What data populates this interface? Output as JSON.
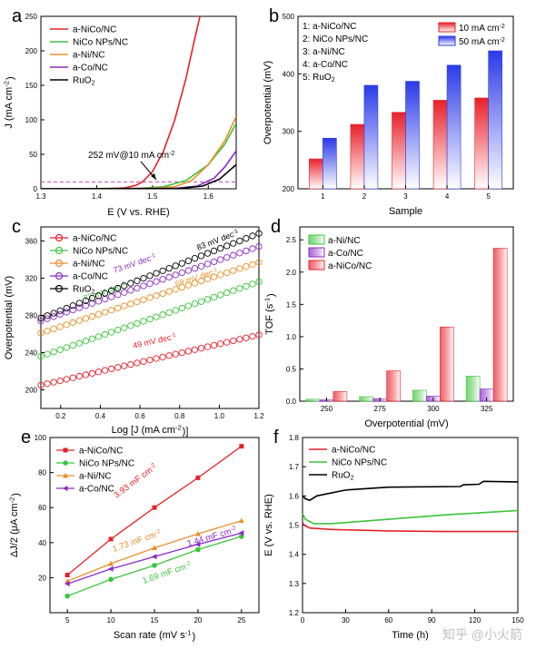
{
  "chart_data": [
    {
      "panel": "a",
      "type": "line",
      "xlabel": "E (V vs. RHE)",
      "ylabel": "J (mA cm-2)",
      "xlim": [
        1.3,
        1.65
      ],
      "ylim": [
        0,
        250
      ],
      "xticks": [
        "1.3",
        "1.4",
        "1.5",
        "1.6"
      ],
      "yticks": [
        "0",
        "50",
        "100",
        "150",
        "200",
        "250"
      ],
      "legend_position": "top-left",
      "annotation": "252 mV@10 mA cm-2",
      "reference_line_y": 10,
      "series": [
        {
          "name": "a-NiCo/NC",
          "color": "#e8202a",
          "points": [
            [
              1.3,
              0
            ],
            [
              1.42,
              0.3
            ],
            [
              1.45,
              1.5
            ],
            [
              1.47,
              5
            ],
            [
              1.482,
              10
            ],
            [
              1.5,
              25
            ],
            [
              1.52,
              55
            ],
            [
              1.54,
              100
            ],
            [
              1.56,
              160
            ],
            [
              1.575,
              215
            ],
            [
              1.585,
              250
            ]
          ]
        },
        {
          "name": "NiCo NPs/NC",
          "color": "#3cc43c",
          "points": [
            [
              1.3,
              0
            ],
            [
              1.48,
              0.5
            ],
            [
              1.52,
              3
            ],
            [
              1.56,
              12
            ],
            [
              1.6,
              35
            ],
            [
              1.63,
              65
            ],
            [
              1.65,
              95
            ]
          ]
        },
        {
          "name": "a-Ni/NC",
          "color": "#e8902a",
          "points": [
            [
              1.3,
              0
            ],
            [
              1.5,
              0.5
            ],
            [
              1.54,
              3
            ],
            [
              1.57,
              12
            ],
            [
              1.6,
              35
            ],
            [
              1.63,
              70
            ],
            [
              1.65,
              105
            ]
          ]
        },
        {
          "name": "a-Co/NC",
          "color": "#8a2bc4",
          "points": [
            [
              1.3,
              0
            ],
            [
              1.54,
              0.5
            ],
            [
              1.58,
              4
            ],
            [
              1.61,
              15
            ],
            [
              1.63,
              32
            ],
            [
              1.65,
              55
            ]
          ]
        },
        {
          "name": "RuO2",
          "color": "#000000",
          "points": [
            [
              1.3,
              0
            ],
            [
              1.55,
              0.5
            ],
            [
              1.59,
              4
            ],
            [
              1.62,
              14
            ],
            [
              1.65,
              35
            ]
          ]
        }
      ]
    },
    {
      "panel": "b",
      "type": "bar",
      "xlabel": "Sample",
      "ylabel": "Overpotential (mV)",
      "ylim": [
        200,
        500
      ],
      "yticks": [
        "200",
        "300",
        "400",
        "500"
      ],
      "categories": [
        "1",
        "2",
        "3",
        "4",
        "5"
      ],
      "sample_key": [
        "1: a-NiCo/NC",
        "2: NiCo NPs/NC",
        "3: a-Ni/NC",
        "4: a-Co/NC",
        "5: RuO2"
      ],
      "legend_position": "top-right",
      "series": [
        {
          "name": "10 mA cm-2",
          "color": "#e8202a",
          "values": [
            252,
            312,
            333,
            354,
            358
          ]
        },
        {
          "name": "50 mA cm-2",
          "color": "#2a3ae8",
          "values": [
            288,
            380,
            387,
            415,
            440
          ]
        }
      ]
    },
    {
      "panel": "c",
      "type": "scatter",
      "xlabel": "Log [J (mA cm-2)]",
      "ylabel": "Overpotential (mV)",
      "xlim": [
        0.1,
        1.2
      ],
      "ylim": [
        180,
        375
      ],
      "xticks": [
        "0.2",
        "0.4",
        "0.6",
        "0.8",
        "1.0",
        "1.2"
      ],
      "yticks": [
        "200",
        "240",
        "280",
        "320",
        "360"
      ],
      "legend_position": "top-left",
      "series": [
        {
          "name": "a-NiCo/NC",
          "color": "#e8202a",
          "start": [
            0.1,
            205
          ],
          "end": [
            1.2,
            259
          ],
          "slope_label": "49 mV dec-1"
        },
        {
          "name": "NiCo NPs/NC",
          "color": "#3cc43c",
          "start": [
            0.1,
            236
          ],
          "end": [
            1.2,
            316
          ],
          "slope_label": "72 mV dec-1"
        },
        {
          "name": "a-Ni/NC",
          "color": "#e8902a",
          "start": [
            0.1,
            261
          ],
          "end": [
            1.2,
            337
          ],
          "slope_label": "69 mV dec-1"
        },
        {
          "name": "a-Co/NC",
          "color": "#8a2bc4",
          "start": [
            0.1,
            274
          ],
          "end": [
            1.2,
            354
          ],
          "slope_label": "73 mV dec-1"
        },
        {
          "name": "RuO2",
          "color": "#000000",
          "start": [
            0.1,
            277
          ],
          "end": [
            1.2,
            368
          ],
          "slope_label": "83 mV dec-1"
        }
      ]
    },
    {
      "panel": "d",
      "type": "bar",
      "xlabel": "Overpotential (mV)",
      "ylabel": "TOF (s-1)",
      "ylim": [
        0,
        2.7
      ],
      "yticks": [
        "0.0",
        "0.5",
        "1.0",
        "1.5",
        "2.0",
        "2.5"
      ],
      "categories": [
        "250",
        "275",
        "300",
        "325"
      ],
      "legend_position": "top-left",
      "series": [
        {
          "name": "a-Ni/NC",
          "color": "#3cc43c",
          "values": [
            0.03,
            0.07,
            0.17,
            0.39
          ]
        },
        {
          "name": "a-Co/NC",
          "color": "#8a2bc4",
          "values": [
            0.02,
            0.04,
            0.08,
            0.19
          ]
        },
        {
          "name": "a-NiCo/NC",
          "color": "#e8202a",
          "values": [
            0.15,
            0.47,
            1.15,
            2.37
          ]
        }
      ]
    },
    {
      "panel": "e",
      "type": "line",
      "xlabel": "Scan rate (mV s-1)",
      "ylabel": "ΔJ/2 (μA cm-2)",
      "xlim": [
        3,
        27
      ],
      "ylim": [
        0,
        100
      ],
      "xticks": [
        "5",
        "10",
        "15",
        "20",
        "25"
      ],
      "yticks": [
        "20",
        "40",
        "60",
        "80",
        "100"
      ],
      "x": [
        5,
        10,
        15,
        20,
        25
      ],
      "legend_position": "top-left",
      "series": [
        {
          "name": "a-NiCo/NC",
          "color": "#e8202a",
          "marker": "square",
          "values": [
            21.5,
            42,
            60,
            77,
            95
          ],
          "slope_label": "3.93 mF cm-2"
        },
        {
          "name": "NiCo NPs/NC",
          "color": "#3cc43c",
          "marker": "circle",
          "values": [
            9.5,
            19,
            27,
            36,
            43.5
          ],
          "slope_label": "1.69 mF cm-2"
        },
        {
          "name": "a-Ni/NC",
          "color": "#e8902a",
          "marker": "triangle",
          "values": [
            18,
            28,
            37,
            45,
            52.5
          ],
          "slope_label": "1.73 mF cm-2"
        },
        {
          "name": "a-Co/NC",
          "color": "#8a2bc4",
          "marker": "triangle-left",
          "values": [
            16.5,
            25,
            32,
            39,
            45.5
          ],
          "slope_label": "1.44 mF cm-2"
        }
      ]
    },
    {
      "panel": "f",
      "type": "line",
      "xlabel": "Time (h)",
      "ylabel": "E (V vs. RHE)",
      "xlim": [
        0,
        150
      ],
      "ylim": [
        1.2,
        1.8
      ],
      "xticks": [
        "0",
        "30",
        "60",
        "90",
        "120",
        "150"
      ],
      "yticks": [
        "1.2",
        "1.3",
        "1.4",
        "1.5",
        "1.6",
        "1.7",
        "1.8"
      ],
      "legend_position": "top-left",
      "series": [
        {
          "name": "a-NiCo/NC",
          "color": "#e8202a",
          "points": [
            [
              0,
              1.51
            ],
            [
              1,
              1.5
            ],
            [
              5,
              1.49
            ],
            [
              20,
              1.485
            ],
            [
              60,
              1.48
            ],
            [
              100,
              1.478
            ],
            [
              150,
              1.478
            ]
          ]
        },
        {
          "name": "NiCo NPs/NC",
          "color": "#3cc43c",
          "points": [
            [
              0,
              1.54
            ],
            [
              2,
              1.52
            ],
            [
              8,
              1.505
            ],
            [
              20,
              1.505
            ],
            [
              60,
              1.52
            ],
            [
              100,
              1.535
            ],
            [
              150,
              1.55
            ]
          ]
        },
        {
          "name": "RuO2",
          "color": "#000000",
          "points": [
            [
              0,
              1.6
            ],
            [
              2,
              1.59
            ],
            [
              5,
              1.585
            ],
            [
              10,
              1.6
            ],
            [
              30,
              1.62
            ],
            [
              60,
              1.63
            ],
            [
              110,
              1.632
            ],
            [
              112,
              1.638
            ],
            [
              123,
              1.64
            ],
            [
              126,
              1.65
            ],
            [
              150,
              1.648
            ]
          ]
        }
      ]
    }
  ],
  "panel_labels": [
    "a",
    "b",
    "c",
    "d",
    "e",
    "f"
  ],
  "watermark": "知乎 @小火箭"
}
